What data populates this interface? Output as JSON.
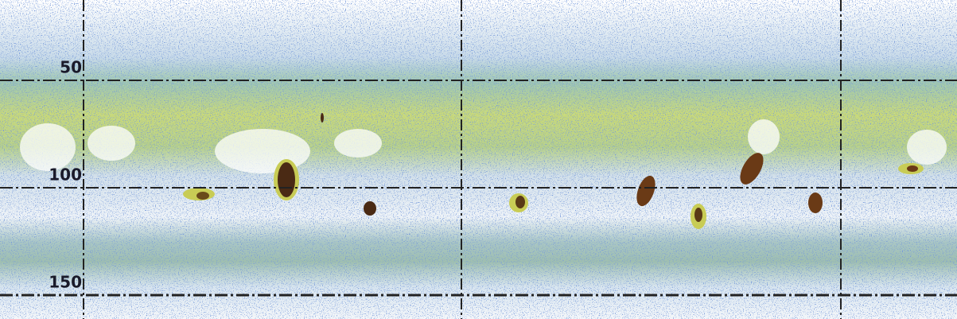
{
  "depth_labels": [
    50,
    100,
    150
  ]
}
